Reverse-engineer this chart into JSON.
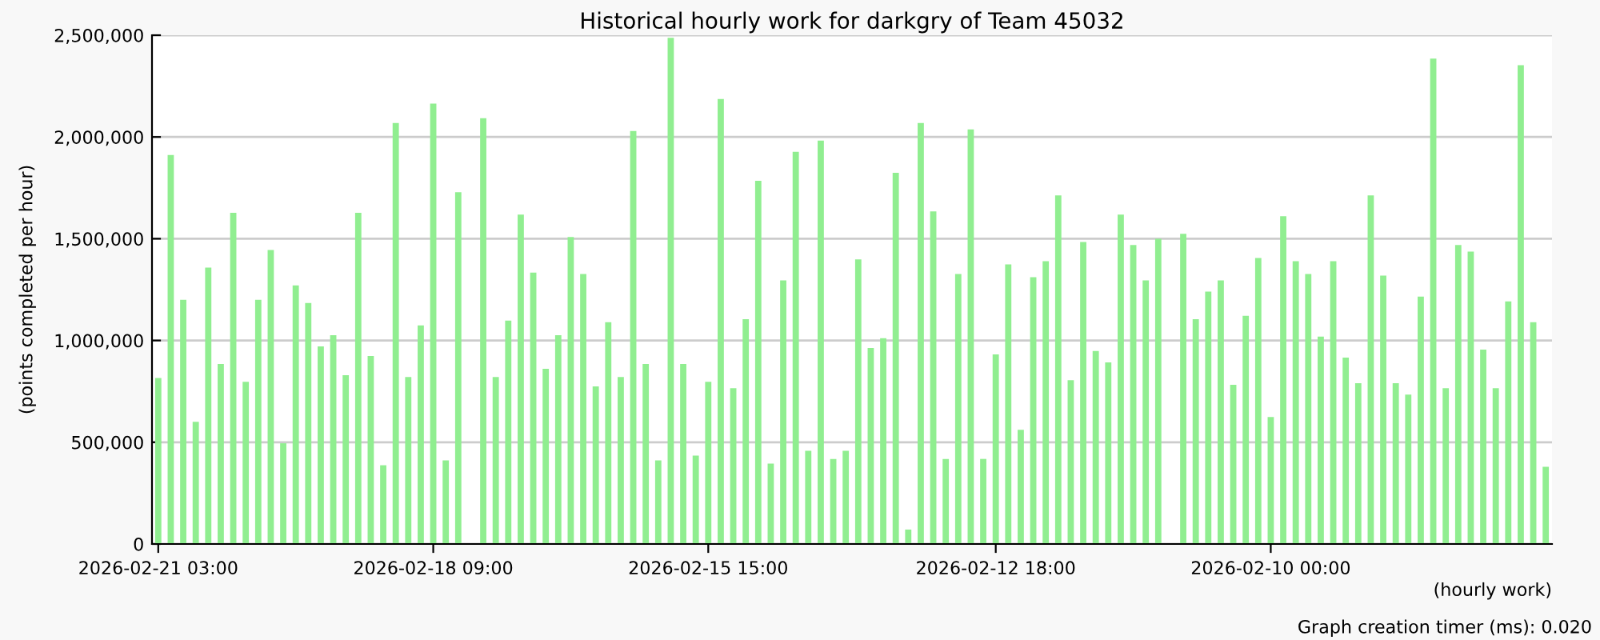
{
  "chart_data": {
    "type": "bar",
    "title": "Historical hourly work for darkgry of Team 45032",
    "xlabel": "(hourly work)",
    "ylabel": "(points completed per hour)",
    "annotations": [
      "Graph creation timer (ms): 0.020"
    ],
    "categories": [
      "2026-02-21 03:00",
      null,
      null,
      null,
      null,
      null,
      null,
      null,
      null,
      null,
      null,
      null,
      null,
      null,
      null,
      null,
      null,
      null,
      null,
      null,
      null,
      null,
      "2026-02-18 09:00",
      null,
      null,
      null,
      null,
      null,
      null,
      null,
      null,
      null,
      null,
      null,
      null,
      null,
      null,
      null,
      null,
      null,
      null,
      null,
      null,
      null,
      "2026-02-15 15:00",
      null,
      null,
      null,
      null,
      null,
      null,
      null,
      null,
      null,
      null,
      null,
      null,
      null,
      null,
      null,
      null,
      null,
      null,
      null,
      null,
      null,
      null,
      "2026-02-12 18:00",
      null,
      null,
      null,
      null,
      null,
      null,
      null,
      null,
      null,
      null,
      null,
      null,
      null,
      null,
      null,
      null,
      null,
      null,
      null,
      null,
      null,
      "2026-02-10 00:00",
      null,
      null,
      null,
      null,
      null,
      null,
      null,
      null,
      null,
      null,
      null,
      null,
      null,
      null,
      null,
      null,
      null,
      null,
      null,
      null,
      null,
      null
    ],
    "values": [
      816000,
      1911000,
      1200000,
      600000,
      1358000,
      884000,
      1627000,
      797000,
      1200000,
      1445000,
      495000,
      1271000,
      1184000,
      971000,
      1026000,
      829000,
      1627000,
      924000,
      387000,
      2069000,
      821000,
      1074000,
      2164000,
      411000,
      1729000,
      null,
      2092000,
      821000,
      1098000,
      1619000,
      1334000,
      861000,
      1026000,
      1508000,
      1327000,
      774000,
      1090000,
      821000,
      2029000,
      884000,
      411000,
      2487000,
      884000,
      434000,
      797000,
      2187000,
      766000,
      1105000,
      1785000,
      395000,
      1295000,
      1927000,
      458000,
      1982000,
      418000,
      458000,
      1398000,
      963000,
      1011000,
      1824000,
      71000,
      2069000,
      1634000,
      418000,
      1327000,
      2037000,
      418000,
      932000,
      1374000,
      561000,
      1311000,
      1390000,
      1713000,
      805000,
      1484000,
      948000,
      892000,
      1619000,
      1469000,
      1295000,
      1500000,
      null,
      1524000,
      1105000,
      1240000,
      1295000,
      782000,
      1121000,
      1405000,
      624000,
      1611000,
      1390000,
      1327000,
      1019000,
      1390000,
      916000,
      790000,
      1713000,
      1319000,
      790000,
      734000,
      1216000,
      2385000,
      766000,
      1469000,
      1437000,
      955000,
      766000,
      1192000,
      2353000,
      1090000,
      379000
    ],
    "color": "#90ee90",
    "ylim": [
      0,
      2500000
    ],
    "yticks": [
      0,
      {
        "value": 500000,
        "label": "500,000"
      },
      {
        "value": 1000000,
        "label": "1,000,000"
      },
      {
        "value": 1500000,
        "label": "1,500,000"
      },
      {
        "value": 2000000,
        "label": "2,000,000"
      },
      {
        "value": 2500000,
        "label": "2,500,000"
      }
    ],
    "grid": "y"
  }
}
